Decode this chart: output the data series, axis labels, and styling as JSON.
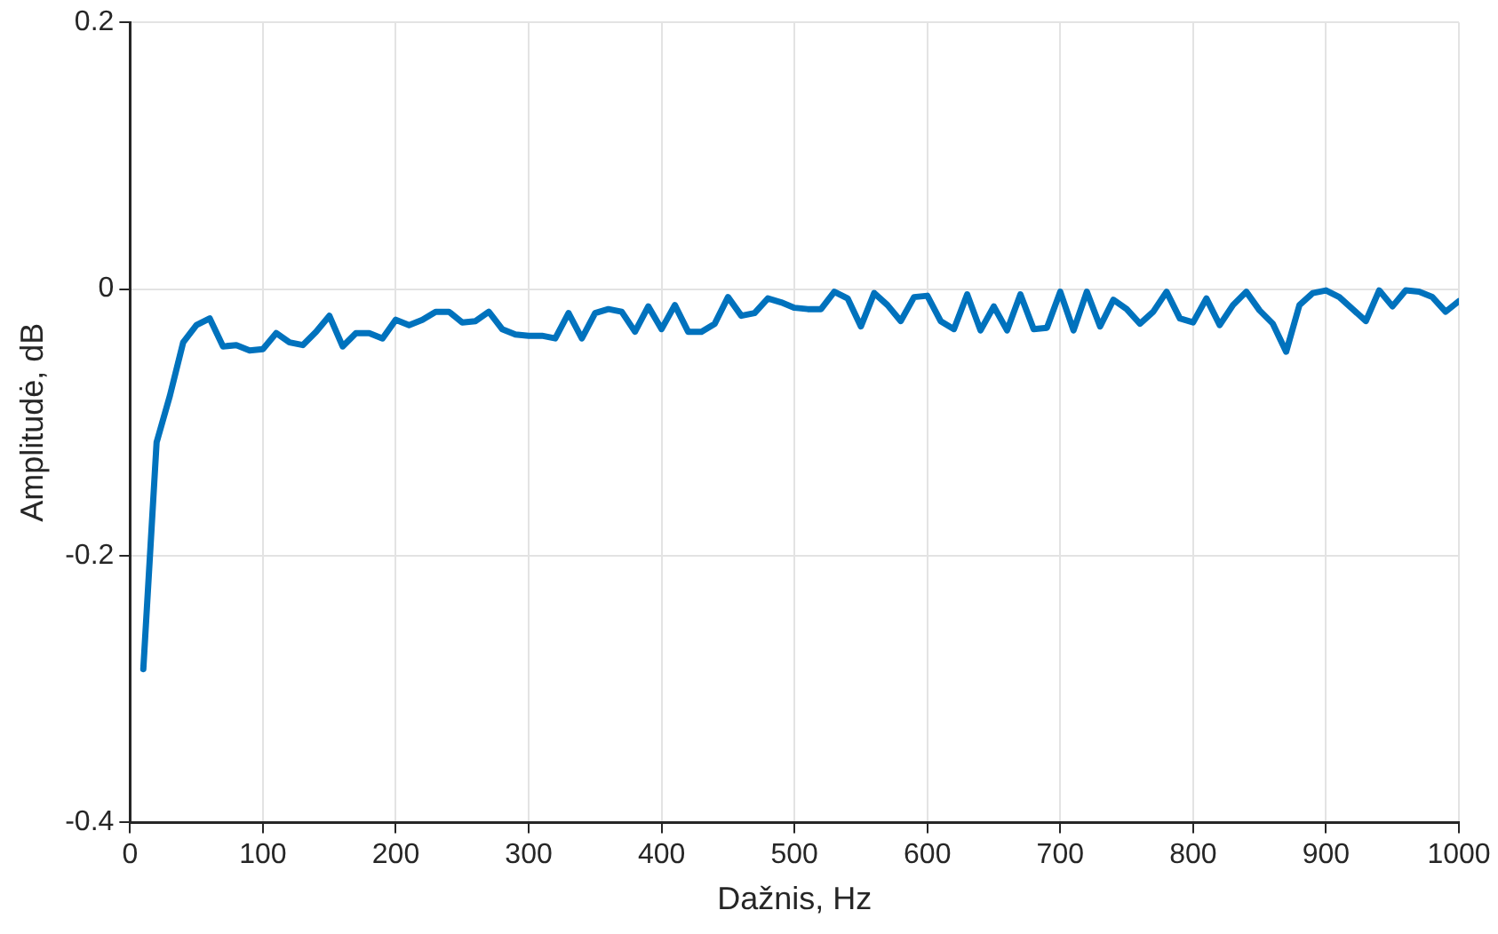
{
  "chart_data": {
    "type": "line",
    "xlabel": "Dažnis, Hz",
    "ylabel": "Amplitudė, dB",
    "x": [
      10,
      20,
      30,
      40,
      50,
      60,
      70,
      80,
      90,
      100,
      110,
      120,
      130,
      140,
      150,
      160,
      170,
      180,
      190,
      200,
      210,
      220,
      230,
      240,
      250,
      260,
      270,
      280,
      290,
      300,
      310,
      320,
      330,
      340,
      350,
      360,
      370,
      380,
      390,
      400,
      410,
      420,
      430,
      440,
      450,
      460,
      470,
      480,
      490,
      500,
      510,
      520,
      530,
      540,
      550,
      560,
      570,
      580,
      590,
      600,
      610,
      620,
      630,
      640,
      650,
      660,
      670,
      680,
      690,
      700,
      710,
      720,
      730,
      740,
      750,
      760,
      770,
      780,
      790,
      800,
      810,
      820,
      830,
      840,
      850,
      860,
      870,
      880,
      890,
      900,
      910,
      920,
      930,
      940,
      950,
      960,
      970,
      980,
      990,
      1000
    ],
    "series": [
      {
        "color": "#0072bd",
        "values": [
          -0.285,
          -0.115,
          -0.08,
          -0.04,
          -0.027,
          -0.022,
          -0.043,
          -0.042,
          -0.046,
          -0.045,
          -0.033,
          -0.04,
          -0.042,
          -0.032,
          -0.02,
          -0.043,
          -0.033,
          -0.033,
          -0.037,
          -0.023,
          -0.027,
          -0.023,
          -0.017,
          -0.017,
          -0.025,
          -0.024,
          -0.017,
          -0.03,
          -0.034,
          -0.035,
          -0.035,
          -0.037,
          -0.018,
          -0.037,
          -0.018,
          -0.015,
          -0.017,
          -0.032,
          -0.013,
          -0.03,
          -0.012,
          -0.032,
          -0.032,
          -0.026,
          -0.006,
          -0.02,
          -0.018,
          -0.007,
          -0.01,
          -0.014,
          -0.015,
          -0.015,
          -0.002,
          -0.007,
          -0.028,
          -0.003,
          -0.012,
          -0.024,
          -0.006,
          -0.005,
          -0.024,
          -0.03,
          -0.004,
          -0.031,
          -0.013,
          -0.031,
          -0.004,
          -0.03,
          -0.029,
          -0.002,
          -0.031,
          -0.002,
          -0.028,
          -0.008,
          -0.015,
          -0.026,
          -0.017,
          -0.002,
          -0.022,
          -0.025,
          -0.007,
          -0.027,
          -0.012,
          -0.002,
          -0.016,
          -0.026,
          -0.047,
          -0.012,
          -0.003,
          -0.001,
          -0.006,
          -0.015,
          -0.024,
          -0.001,
          -0.013,
          -0.001,
          -0.002,
          -0.006,
          -0.017,
          -0.009
        ]
      }
    ],
    "xlim": [
      0,
      1000
    ],
    "xticks": [
      0,
      100,
      200,
      300,
      400,
      500,
      600,
      700,
      800,
      900,
      1000
    ],
    "ylim": [
      -0.4,
      0.2
    ],
    "yticks": [
      -0.4,
      -0.2,
      0,
      0.2
    ],
    "grid": true,
    "legend": false,
    "marker": "none",
    "line_style": "solid"
  }
}
